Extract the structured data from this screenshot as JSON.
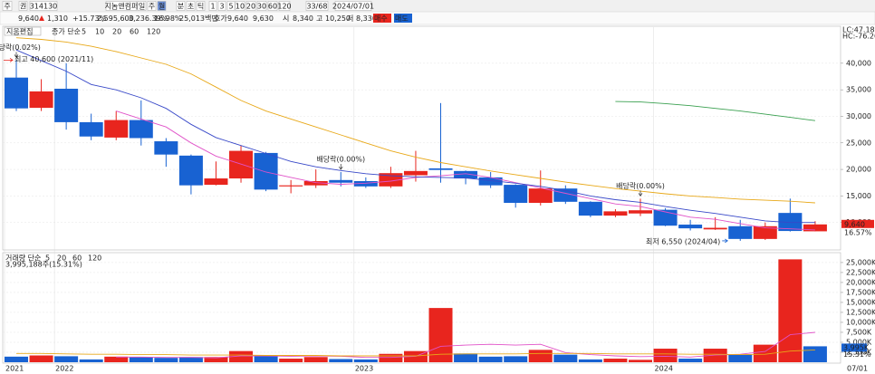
{
  "toolbar": {
    "items": [
      "주",
      "권",
      "314130",
      "지놈앤컴퍼",
      "일",
      "주",
      "월",
      "분",
      "초",
      "틱",
      "1",
      "3",
      "5",
      "10",
      "20",
      "30",
      "60",
      "120",
      "33/68",
      "2024/07/01"
    ]
  },
  "quote": {
    "items": [
      "9,640",
      "1,310",
      "+15.73%",
      "2,595,600",
      "3,236.39%",
      "16.98%",
      "25,013백만",
      "호가",
      "9,640",
      "9,630",
      "시",
      "8,340",
      "고",
      "10,250",
      "저",
      "8,330",
      "매수",
      "매도"
    ]
  },
  "chart_data": [
    {
      "type": "candlestick",
      "title": "지움편집",
      "legend_label": "종가 단순",
      "categories": [
        "2021",
        null,
        "2022",
        null,
        null,
        null,
        null,
        null,
        null,
        null,
        null,
        null,
        null,
        null,
        "2023",
        null,
        null,
        null,
        null,
        null,
        null,
        null,
        null,
        null,
        null,
        null,
        "2024",
        null,
        null,
        null,
        null,
        null,
        null
      ],
      "x_end_label": "07/01",
      "open": [
        37300,
        31600,
        35200,
        28900,
        26000,
        29300,
        25300,
        22600,
        17100,
        18300,
        23100,
        16800,
        17000,
        18000,
        17800,
        16800,
        18900,
        20200,
        19700,
        18500,
        17100,
        13700,
        16400,
        13900,
        11300,
        11700,
        12400,
        9600,
        8700,
        9300,
        6900,
        11800,
        8340
      ],
      "high": [
        40600,
        37000,
        40000,
        30500,
        31000,
        33000,
        25900,
        22800,
        21500,
        24500,
        23300,
        18000,
        20000,
        19500,
        18500,
        20500,
        23500,
        32500,
        19800,
        19500,
        17200,
        19800,
        17000,
        14000,
        12500,
        14500,
        12700,
        10500,
        11000,
        10500,
        10000,
        14500,
        10250
      ],
      "low": [
        31000,
        31000,
        27500,
        25500,
        25500,
        24500,
        20500,
        15300,
        17000,
        17500,
        15900,
        15500,
        16500,
        16800,
        16500,
        16500,
        17700,
        17500,
        17200,
        16500,
        12800,
        13200,
        13500,
        11000,
        11000,
        11200,
        9300,
        8500,
        8600,
        6550,
        6700,
        8300,
        8330
      ],
      "close": [
        31500,
        34700,
        28900,
        26200,
        29300,
        25900,
        22800,
        17000,
        18300,
        23500,
        16200,
        17000,
        17800,
        17500,
        16800,
        19300,
        19700,
        19900,
        18300,
        17000,
        13700,
        16400,
        13900,
        11300,
        12100,
        12300,
        9400,
        8900,
        9000,
        6900,
        9300,
        8400,
        9640
      ],
      "up_color": "#e8251e",
      "down_color": "#1862d2",
      "series": [
        {
          "name": "5",
          "color": "#e052c8",
          "values": [
            null,
            null,
            null,
            null,
            31000,
            29500,
            28000,
            25000,
            22500,
            21000,
            19500,
            18500,
            17500,
            17200,
            17400,
            17800,
            18500,
            18800,
            19200,
            18500,
            17500,
            16500,
            15500,
            14500,
            13500,
            13000,
            12000,
            11000,
            10600,
            9800,
            9000,
            8800,
            8600
          ]
        },
        {
          "name": "10",
          "color": "#3848c8",
          "values": [
            42500,
            40500,
            38500,
            36000,
            35000,
            33500,
            31500,
            28500,
            26000,
            24500,
            23000,
            21500,
            20500,
            19800,
            19200,
            18800,
            18600,
            18500,
            18400,
            17900,
            17400,
            16800,
            16000,
            15000,
            14300,
            13800,
            13000,
            12300,
            11700,
            11000,
            10300,
            10000,
            10000
          ]
        },
        {
          "name": "20",
          "color": "#e8a818",
          "values": [
            44800,
            44500,
            44000,
            43200,
            42200,
            41000,
            39800,
            38000,
            35500,
            33000,
            31000,
            29500,
            28000,
            26500,
            25000,
            23500,
            22300,
            21300,
            20500,
            19700,
            19000,
            18300,
            17600,
            17000,
            16400,
            15900,
            15400,
            15000,
            14700,
            14400,
            14200,
            14000,
            13700
          ]
        },
        {
          "name": "60",
          "color": "#3aa050",
          "values": [
            null,
            null,
            null,
            null,
            null,
            null,
            null,
            null,
            null,
            null,
            null,
            null,
            null,
            null,
            null,
            null,
            null,
            null,
            null,
            null,
            null,
            null,
            null,
            null,
            32800,
            32700,
            32400,
            32000,
            31500,
            31000,
            30400,
            29800,
            29200
          ]
        },
        {
          "name": "120",
          "color": "#909090",
          "values": [
            null,
            null,
            null,
            null,
            null,
            null,
            null,
            null,
            null,
            null,
            null,
            null,
            null,
            null,
            null,
            null,
            null,
            null,
            null,
            null,
            null,
            null,
            null,
            null,
            null,
            null,
            null,
            null,
            null,
            null,
            null,
            null,
            null
          ]
        }
      ],
      "ylim": [
        5000,
        46800
      ],
      "yticks": [
        {
          "value": 10000,
          "label": "10,000"
        },
        {
          "value": 15000,
          "label": "15,000"
        },
        {
          "value": 20000,
          "label": "20,000"
        },
        {
          "value": 25000,
          "label": "25,000"
        },
        {
          "value": 30000,
          "label": "30,000"
        },
        {
          "value": 35000,
          "label": "35,000"
        },
        {
          "value": 40000,
          "label": "40,000"
        }
      ],
      "annotations": [
        {
          "kind": "dividend",
          "index": 0,
          "text": "배당락(0.02%)"
        },
        {
          "kind": "max",
          "index": 0,
          "text": "최고 40,600 (2021/11)"
        },
        {
          "kind": "dividend",
          "index": 13,
          "text": "배당락(0.00%)"
        },
        {
          "kind": "dividend",
          "index": 25,
          "text": "배당락(0.00%)"
        },
        {
          "kind": "min",
          "index": 29,
          "text": "최저 6,550 (2024/04)"
        }
      ],
      "right_labels": {
        "lc": "LC:47.18",
        "hc": "HC:-76.26",
        "last": "9,640",
        "rate": "16.57%"
      }
    },
    {
      "type": "bar",
      "title": "거래량 단순",
      "value_label": "3,995,188주(15.31%)",
      "values": [
        1400,
        1700,
        1500,
        700,
        1400,
        1300,
        1100,
        1300,
        1300,
        2800,
        1500,
        900,
        1300,
        800,
        700,
        2100,
        2800,
        13600,
        2200,
        1400,
        1500,
        3100,
        1900,
        700,
        900,
        600,
        3400,
        900,
        3400,
        1900,
        4400,
        25800,
        3995
      ],
      "up": [
        false,
        true,
        false,
        false,
        true,
        false,
        false,
        false,
        true,
        true,
        false,
        true,
        true,
        false,
        false,
        true,
        true,
        true,
        false,
        false,
        false,
        true,
        false,
        false,
        true,
        true,
        true,
        false,
        true,
        false,
        true,
        true,
        false
      ],
      "up_color": "#e8251e",
      "down_color": "#1862d2",
      "series": [
        {
          "name": "5",
          "color": "#e052c8",
          "values": [
            null,
            null,
            null,
            null,
            1300,
            1300,
            1200,
            1200,
            1100,
            1600,
            1600,
            1500,
            1600,
            1500,
            1200,
            1200,
            1500,
            4000,
            4300,
            4500,
            4300,
            4500,
            2400,
            1900,
            1600,
            1400,
            1500,
            1300,
            1800,
            2000,
            2700,
            6900,
            7500
          ]
        },
        {
          "name": "20",
          "color": "#e8a818",
          "values": [
            2200,
            2200,
            2100,
            2000,
            2000,
            1900,
            1900,
            1800,
            1800,
            1800,
            1700,
            1700,
            1700,
            1600,
            1600,
            1600,
            1600,
            2000,
            2100,
            2100,
            2100,
            2200,
            2200,
            2200,
            2100,
            2100,
            2100,
            2000,
            2000,
            1900,
            2000,
            2800,
            3100
          ]
        },
        {
          "name": "60",
          "color": "#3aa050",
          "values": [
            null,
            null,
            null,
            null,
            null,
            null,
            null,
            null,
            null,
            null,
            null,
            null,
            null,
            null,
            null,
            null,
            null,
            null,
            null,
            null,
            null,
            null,
            null,
            null,
            null,
            null,
            null,
            null,
            null,
            null,
            null,
            null,
            null
          ]
        },
        {
          "name": "120",
          "color": "#909090",
          "values": [
            null,
            null,
            null,
            null,
            null,
            null,
            null,
            null,
            null,
            null,
            null,
            null,
            null,
            null,
            null,
            null,
            null,
            null,
            null,
            null,
            null,
            null,
            null,
            null,
            null,
            null,
            null,
            null,
            null,
            null,
            null,
            null,
            null
          ]
        }
      ],
      "ylim": [
        0,
        26800
      ],
      "yticks": [
        {
          "value": 2500,
          "label": "2,500K"
        },
        {
          "value": 5000,
          "label": "5,000K"
        },
        {
          "value": 7500,
          "label": "7,500K"
        },
        {
          "value": 10000,
          "label": "10,000K"
        },
        {
          "value": 12500,
          "label": "12,500K"
        },
        {
          "value": 15000,
          "label": "15,000K"
        },
        {
          "value": 17500,
          "label": "17,500K"
        },
        {
          "value": 20000,
          "label": "20,000K"
        },
        {
          "value": 22500,
          "label": "22,500K"
        },
        {
          "value": 25000,
          "label": "25,000K"
        }
      ],
      "right_labels": {
        "last": "3,995K",
        "rate": "15.31%"
      }
    }
  ]
}
